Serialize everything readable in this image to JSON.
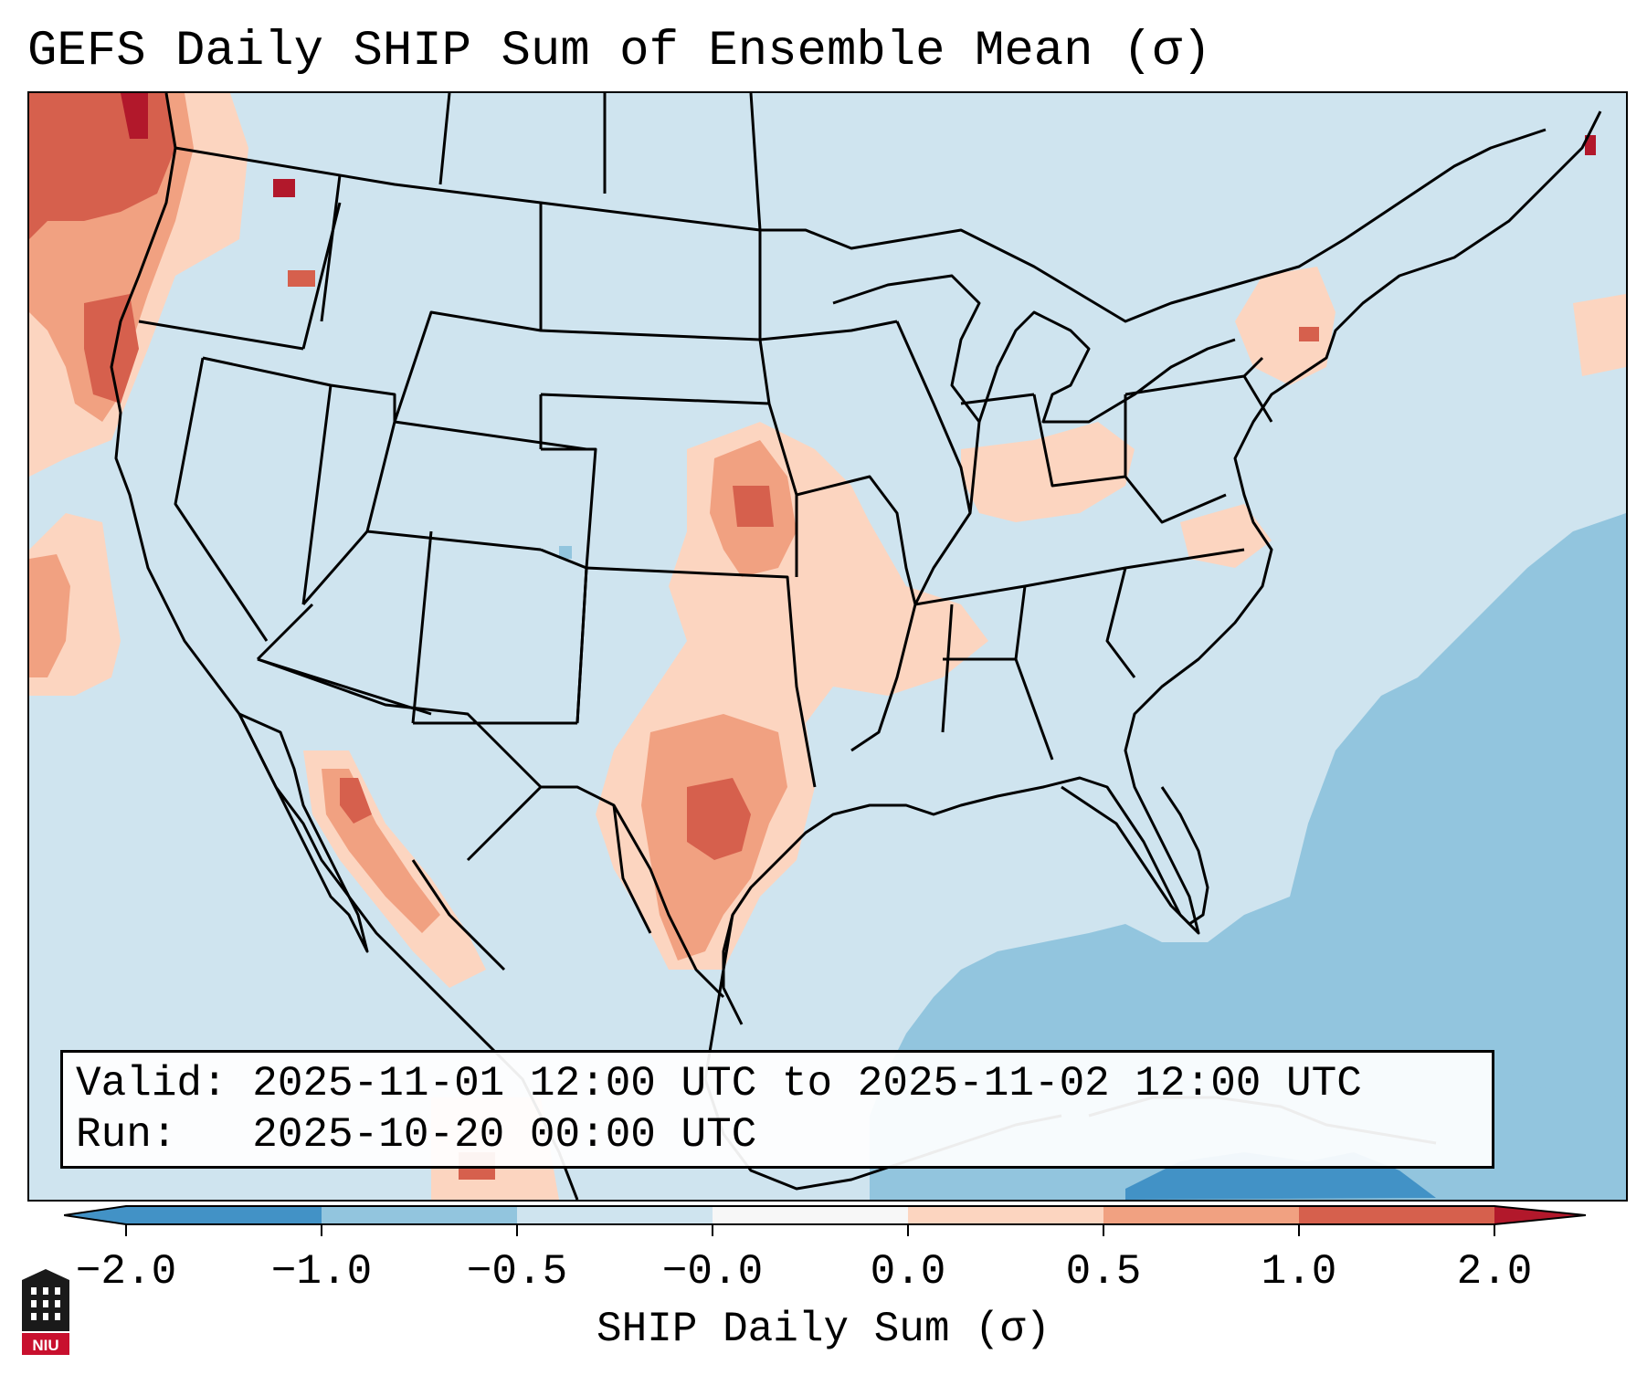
{
  "title": "GEFS Daily SHIP Sum of Ensemble Mean (σ)",
  "info": {
    "valid_line": "Valid: 2025-11-01 12:00 UTC to 2025-11-02 12:00 UTC",
    "run_line": "Run:   2025-10-20 00:00 UTC"
  },
  "colorbar": {
    "label": "SHIP Daily Sum (σ)",
    "ticks": [
      "−2.0",
      "−1.0",
      "−0.5",
      "−0.0",
      "0.0",
      "0.5",
      "1.0",
      "2.0"
    ],
    "segment_colors": [
      "#4292c6",
      "#92c5de",
      "#cfe4ef",
      "#f7f7f7",
      "#fcd5c0",
      "#f1a181",
      "#d6604d",
      "#b2182b"
    ]
  },
  "map": {
    "background_color": "#cfe4ef",
    "ocean_anomaly_color": "#92c5de",
    "strong_negative_color": "#4292c6",
    "outline_color": "#000000"
  },
  "logo": {
    "text": "NIU"
  }
}
